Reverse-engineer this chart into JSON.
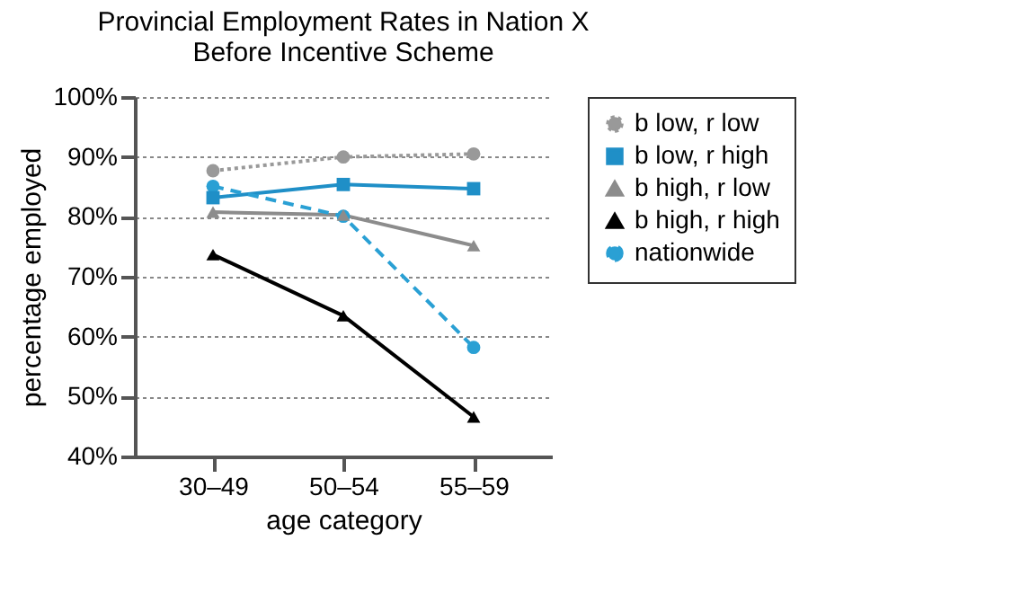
{
  "chart_data": {
    "type": "line",
    "title": "Provincial Employment Rates in Nation X Before Incentive Scheme",
    "xlabel": "age category",
    "ylabel": "percentage employed",
    "categories": [
      "30–49",
      "50–54",
      "55–59"
    ],
    "series": [
      {
        "name": "b low, r low",
        "color": "#999999",
        "values": [
          87.7,
          90,
          90.5
        ],
        "marker": "circle",
        "line_style": "dotted"
      },
      {
        "name": "b low, r high",
        "color": "#1f8fc7",
        "values": [
          83.2,
          85.4,
          84.7
        ],
        "marker": "square",
        "line_style": "solid"
      },
      {
        "name": "b high, r low",
        "color": "#8c8c8c",
        "values": [
          80.8,
          80.3,
          75.2
        ],
        "marker": "triangle",
        "line_style": "solid"
      },
      {
        "name": "b high, r high",
        "color": "#000000",
        "values": [
          73.7,
          63.5,
          46.6
        ],
        "marker": "triangle",
        "line_style": "solid"
      },
      {
        "name": "nationwide",
        "color": "#2aa0d4",
        "values": [
          85.1,
          80.1,
          58.2
        ],
        "marker": "circle",
        "line_style": "dashed"
      }
    ],
    "ylim": [
      40,
      100
    ],
    "yticks": [
      {
        "value": 40,
        "label": "40%"
      },
      {
        "value": 50,
        "label": "50%"
      },
      {
        "value": 60,
        "label": "60%"
      },
      {
        "value": 70,
        "label": "70%"
      },
      {
        "value": 80,
        "label": "80%"
      },
      {
        "value": 90,
        "label": "90%"
      },
      {
        "value": 100,
        "label": "100%"
      }
    ],
    "grid": "y",
    "legend": "top right"
  }
}
